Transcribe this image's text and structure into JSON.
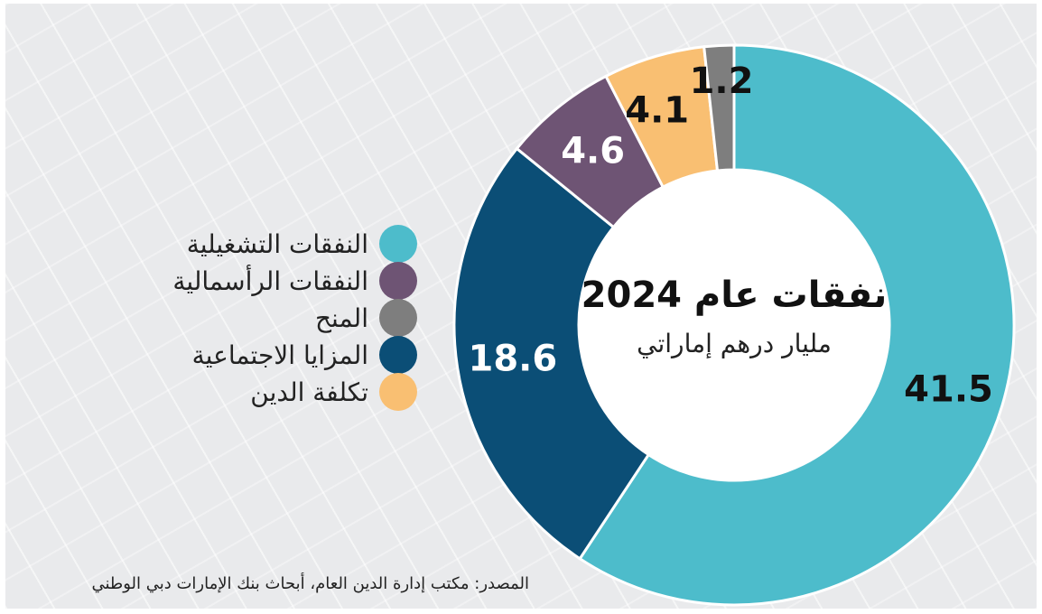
{
  "chart_data": {
    "type": "pie",
    "title": "نفقات عام 2024",
    "subtitle": "مليار درهم إماراتي",
    "labels": [
      "النفقات التشغيلية",
      "المزايا الاجتماعية",
      "النفقات الرأسمالية",
      "تكلفة الدين",
      "المنح"
    ],
    "values": [
      41.5,
      18.6,
      4.6,
      4.1,
      1.2
    ],
    "value_labels": [
      "41.5",
      "18.6",
      "4.6",
      "4.1",
      "1.2"
    ],
    "colors": [
      "#4dbccb",
      "#0b4e76",
      "#6e5474",
      "#f9bf72",
      "#7e7e7e"
    ],
    "label_colors": [
      "#111111",
      "#ffffff",
      "#ffffff",
      "#111111",
      "#111111"
    ],
    "style": "donut",
    "legend_position": "left"
  },
  "legend": [
    {
      "label": "النفقات التشغيلية",
      "color": "#4dbccb"
    },
    {
      "label": "النفقات الرأسمالية",
      "color": "#6e5474"
    },
    {
      "label": "المنح",
      "color": "#7e7e7e"
    },
    {
      "label": "المزايا الاجتماعية",
      "color": "#0b4e76"
    },
    {
      "label": "تكلفة الدين",
      "color": "#f9bf72"
    }
  ],
  "source": "المصدر: مكتب إدارة الدين العام، أبحاث بنك الإمارات دبي الوطني"
}
